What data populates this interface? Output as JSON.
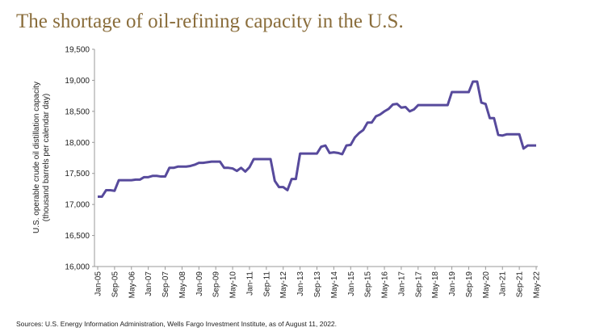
{
  "chart_data": {
    "type": "line",
    "title": "The shortage of oil-refining capacity in the U.S.",
    "ylabel": [
      "U.S. operable crude oil distillation capacity",
      "(thousand barrels per calendar day)"
    ],
    "source": "Sources: U.S. Energy Information Administration, Wells Fargo Investment Institute, as of August 11, 2022.",
    "categories": [
      "Jan-05",
      null,
      null,
      null,
      "Sep-05",
      null,
      null,
      null,
      "May-06",
      null,
      null,
      null,
      "Jan-07",
      null,
      null,
      null,
      "Sep-07",
      null,
      null,
      null,
      "May-08",
      null,
      null,
      null,
      "Jan-09",
      null,
      null,
      null,
      "Sep-09",
      null,
      null,
      null,
      "May-10",
      null,
      null,
      null,
      "Jan-11",
      null,
      null,
      null,
      "Sep-11",
      null,
      null,
      null,
      "May-12",
      null,
      null,
      null,
      "Jan-13",
      null,
      null,
      null,
      "Sep-13",
      null,
      null,
      null,
      "May-14",
      null,
      null,
      null,
      "Jan-15",
      null,
      null,
      null,
      "Sep-15",
      null,
      null,
      null,
      "May-16",
      null,
      null,
      null,
      "Jan-17",
      null,
      null,
      null,
      "Sep-17",
      null,
      null,
      null,
      "May-18",
      null,
      null,
      null,
      "Jan-19",
      null,
      null,
      null,
      "Sep-19",
      null,
      null,
      null,
      "May-20",
      null,
      null,
      null,
      "Jan-21",
      null,
      null,
      null,
      "Sep-21",
      null,
      null,
      null,
      "May-22"
    ],
    "series": [
      {
        "color": "#574a9c",
        "values": [
          17125,
          17125,
          17230,
          17230,
          17220,
          17390,
          17390,
          17390,
          17390,
          17400,
          17400,
          17440,
          17440,
          17460,
          17460,
          17450,
          17450,
          17590,
          17590,
          17610,
          17610,
          17610,
          17620,
          17640,
          17670,
          17670,
          17680,
          17690,
          17690,
          17690,
          17590,
          17590,
          17580,
          17540,
          17590,
          17530,
          17600,
          17730,
          17730,
          17730,
          17730,
          17730,
          17380,
          17280,
          17280,
          17230,
          17410,
          17410,
          17820,
          17820,
          17820,
          17820,
          17820,
          17930,
          17950,
          17830,
          17840,
          17830,
          17810,
          17950,
          17960,
          18080,
          18150,
          18200,
          18320,
          18320,
          18420,
          18450,
          18500,
          18540,
          18610,
          18620,
          18560,
          18570,
          18500,
          18530,
          18600,
          18600,
          18600,
          18600,
          18600,
          18600,
          18600,
          18600,
          18810,
          18810,
          18810,
          18810,
          18810,
          18980,
          18980,
          18640,
          18620,
          18390,
          18390,
          18120,
          18110,
          18130,
          18130,
          18130,
          18130,
          17900,
          17950,
          17950,
          17950
        ]
      }
    ],
    "ylim": [
      16000,
      19500
    ],
    "yticks": [
      {
        "value": 16000,
        "label": "16,000"
      },
      {
        "value": 16500,
        "label": "16,500"
      },
      {
        "value": 17000,
        "label": "17,000"
      },
      {
        "value": 17500,
        "label": "17,500"
      },
      {
        "value": 18000,
        "label": "18,000"
      },
      {
        "value": 18500,
        "label": "18,500"
      },
      {
        "value": 19000,
        "label": "19,000"
      },
      {
        "value": 19500,
        "label": "19,500"
      }
    ],
    "grid": false
  }
}
